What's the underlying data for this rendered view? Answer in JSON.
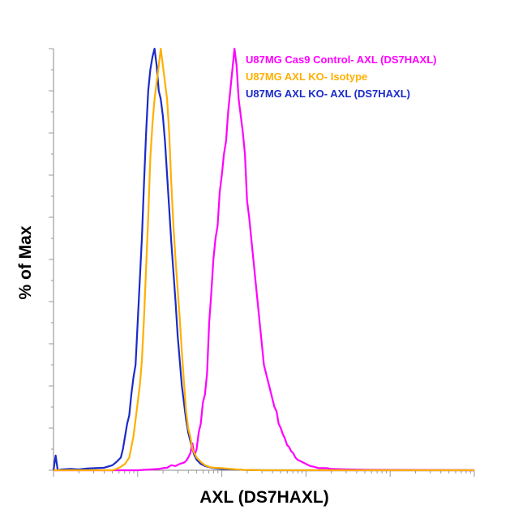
{
  "chart_data": {
    "type": "line",
    "title": "",
    "xlabel": "AXL (DS7HAXL)",
    "ylabel": "% of Max",
    "ylim": [
      0,
      100
    ],
    "x_scale": "log",
    "x_tick_labels": "none",
    "y_tick_labels": "none",
    "grid": false,
    "legend_position": "top-right",
    "series": [
      {
        "name": "U87MG Cas9 Control- AXL (DS7HAXL)",
        "color": "#ff00ff",
        "points": [
          [
            0.0,
            0
          ],
          [
            0.2,
            0
          ],
          [
            0.25,
            0.3
          ],
          [
            0.26,
            0.5
          ],
          [
            0.27,
            0.6
          ],
          [
            0.28,
            1.2
          ],
          [
            0.29,
            1.0
          ],
          [
            0.3,
            1.5
          ],
          [
            0.31,
            1.8
          ],
          [
            0.315,
            2.2
          ],
          [
            0.32,
            3.0
          ],
          [
            0.325,
            4.0
          ],
          [
            0.33,
            6.4
          ],
          [
            0.335,
            3.5
          ],
          [
            0.34,
            5.0
          ],
          [
            0.345,
            9.0
          ],
          [
            0.35,
            11.0
          ],
          [
            0.355,
            16.0
          ],
          [
            0.36,
            18.0
          ],
          [
            0.365,
            23.0
          ],
          [
            0.37,
            35.0
          ],
          [
            0.375,
            42.0
          ],
          [
            0.38,
            50.0
          ],
          [
            0.385,
            55.0
          ],
          [
            0.39,
            58.0
          ],
          [
            0.395,
            66.0
          ],
          [
            0.4,
            70.0
          ],
          [
            0.405,
            75.0
          ],
          [
            0.41,
            78.0
          ],
          [
            0.415,
            85.0
          ],
          [
            0.42,
            90.0
          ],
          [
            0.425,
            95.0
          ],
          [
            0.43,
            100.0
          ],
          [
            0.435,
            96.0
          ],
          [
            0.44,
            88.0
          ],
          [
            0.445,
            84.0
          ],
          [
            0.45,
            80.0
          ],
          [
            0.455,
            75.0
          ],
          [
            0.46,
            64.0
          ],
          [
            0.465,
            60.0
          ],
          [
            0.47,
            55.0
          ],
          [
            0.475,
            50.0
          ],
          [
            0.48,
            45.0
          ],
          [
            0.485,
            40.0
          ],
          [
            0.49,
            35.0
          ],
          [
            0.495,
            30.0
          ],
          [
            0.5,
            25.0
          ],
          [
            0.505,
            23.0
          ],
          [
            0.51,
            21.0
          ],
          [
            0.515,
            19.0
          ],
          [
            0.52,
            17.0
          ],
          [
            0.525,
            15.0
          ],
          [
            0.53,
            14.0
          ],
          [
            0.535,
            11.0
          ],
          [
            0.54,
            10.0
          ],
          [
            0.545,
            8.5
          ],
          [
            0.55,
            7.5
          ],
          [
            0.555,
            6.0
          ],
          [
            0.56,
            5.5
          ],
          [
            0.565,
            4.5
          ],
          [
            0.57,
            4.0
          ],
          [
            0.575,
            3.0
          ],
          [
            0.58,
            2.5
          ],
          [
            0.59,
            2.0
          ],
          [
            0.6,
            1.5
          ],
          [
            0.61,
            1.0
          ],
          [
            0.62,
            0.8
          ],
          [
            0.63,
            0.5
          ],
          [
            0.65,
            0.5
          ],
          [
            0.66,
            0.3
          ],
          [
            0.7,
            0.2
          ],
          [
            0.75,
            0.1
          ],
          [
            1.0,
            0
          ]
        ]
      },
      {
        "name": "U87MG AXL KO- Isotype",
        "color": "#ffb000",
        "points": [
          [
            0.0,
            0
          ],
          [
            0.1,
            0
          ],
          [
            0.14,
            0
          ],
          [
            0.15,
            0.3
          ],
          [
            0.16,
            0.8
          ],
          [
            0.17,
            1.5
          ],
          [
            0.18,
            3.0
          ],
          [
            0.19,
            8.0
          ],
          [
            0.195,
            12.0
          ],
          [
            0.2,
            16.0
          ],
          [
            0.205,
            20.0
          ],
          [
            0.21,
            26.0
          ],
          [
            0.215,
            36.0
          ],
          [
            0.22,
            48.0
          ],
          [
            0.225,
            60.0
          ],
          [
            0.23,
            74.0
          ],
          [
            0.235,
            82.0
          ],
          [
            0.24,
            88.0
          ],
          [
            0.245,
            92.0
          ],
          [
            0.25,
            96.0
          ],
          [
            0.255,
            100.0
          ],
          [
            0.26,
            96.0
          ],
          [
            0.265,
            92.0
          ],
          [
            0.27,
            88.0
          ],
          [
            0.275,
            80.0
          ],
          [
            0.28,
            68.0
          ],
          [
            0.285,
            58.0
          ],
          [
            0.29,
            50.0
          ],
          [
            0.295,
            43.0
          ],
          [
            0.3,
            36.0
          ],
          [
            0.305,
            28.0
          ],
          [
            0.31,
            21.0
          ],
          [
            0.315,
            14.0
          ],
          [
            0.32,
            10.0
          ],
          [
            0.325,
            8.0
          ],
          [
            0.33,
            5.0
          ],
          [
            0.335,
            4.0
          ],
          [
            0.34,
            3.0
          ],
          [
            0.35,
            2.0
          ],
          [
            0.36,
            1.2
          ],
          [
            0.37,
            0.8
          ],
          [
            0.38,
            0.6
          ],
          [
            0.4,
            0.5
          ],
          [
            0.42,
            0.3
          ],
          [
            0.45,
            0.1
          ],
          [
            0.5,
            0
          ],
          [
            0.75,
            0
          ],
          [
            1.0,
            0
          ]
        ]
      },
      {
        "name": "U87MG AXL KO- AXL (DS7HAXL)",
        "color": "#1a2bc8",
        "points": [
          [
            0.0,
            0
          ],
          [
            0.005,
            3.5
          ],
          [
            0.01,
            0
          ],
          [
            0.02,
            0.2
          ],
          [
            0.04,
            0.3
          ],
          [
            0.06,
            0.2
          ],
          [
            0.08,
            0.4
          ],
          [
            0.1,
            0.5
          ],
          [
            0.12,
            0.6
          ],
          [
            0.14,
            1.2
          ],
          [
            0.15,
            2.0
          ],
          [
            0.16,
            3.0
          ],
          [
            0.165,
            5.0
          ],
          [
            0.17,
            8.0
          ],
          [
            0.175,
            11.0
          ],
          [
            0.18,
            13.0
          ],
          [
            0.185,
            18.0
          ],
          [
            0.19,
            22.0
          ],
          [
            0.195,
            25.0
          ],
          [
            0.2,
            35.0
          ],
          [
            0.205,
            45.0
          ],
          [
            0.21,
            55.0
          ],
          [
            0.215,
            68.0
          ],
          [
            0.22,
            80.0
          ],
          [
            0.225,
            90.0
          ],
          [
            0.23,
            95.0
          ],
          [
            0.235,
            98.0
          ],
          [
            0.24,
            100.0
          ],
          [
            0.245,
            96.0
          ],
          [
            0.25,
            90.0
          ],
          [
            0.255,
            88.0
          ],
          [
            0.26,
            84.0
          ],
          [
            0.265,
            78.0
          ],
          [
            0.27,
            70.0
          ],
          [
            0.275,
            62.0
          ],
          [
            0.28,
            54.0
          ],
          [
            0.285,
            47.0
          ],
          [
            0.29,
            40.0
          ],
          [
            0.295,
            32.0
          ],
          [
            0.3,
            26.0
          ],
          [
            0.305,
            20.0
          ],
          [
            0.31,
            16.0
          ],
          [
            0.315,
            12.0
          ],
          [
            0.32,
            9.0
          ],
          [
            0.325,
            7.0
          ],
          [
            0.33,
            5.0
          ],
          [
            0.335,
            3.5
          ],
          [
            0.34,
            2.5
          ],
          [
            0.35,
            1.5
          ],
          [
            0.36,
            1.0
          ],
          [
            0.38,
            0.5
          ],
          [
            0.4,
            0.3
          ],
          [
            0.45,
            0.1
          ],
          [
            0.5,
            0
          ],
          [
            1.0,
            0
          ]
        ]
      }
    ]
  }
}
